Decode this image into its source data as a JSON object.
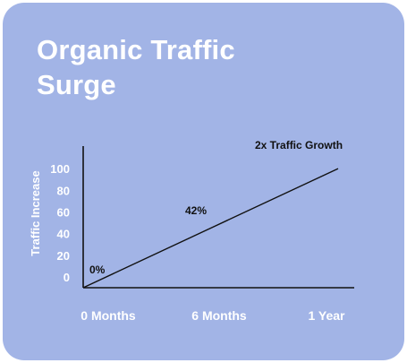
{
  "title_lines": [
    "Organic Traffic",
    "Surge"
  ],
  "chart_data": {
    "type": "line",
    "title": "Organic Traffic Surge",
    "xlabel": "",
    "ylabel": "Traffic Increase",
    "categories": [
      "0 Months",
      "6 Months",
      "1 Year"
    ],
    "y_ticks": [
      0,
      20,
      40,
      60,
      80,
      100
    ],
    "ylim": [
      -10,
      110
    ],
    "series": [
      {
        "x": [
          0,
          12
        ],
        "y": [
          -10,
          100
        ]
      }
    ],
    "annotations": [
      {
        "text": "0%",
        "x": 0,
        "y": 0
      },
      {
        "text": "42%",
        "x": 5.2,
        "y": 42
      },
      {
        "text": "2x Traffic Growth",
        "x": 11.2,
        "y": 100
      }
    ],
    "colors": {
      "background": "#a2b4e6",
      "axis": "#111111",
      "line": "#111111",
      "label": "#ffffff"
    },
    "grid": false
  }
}
